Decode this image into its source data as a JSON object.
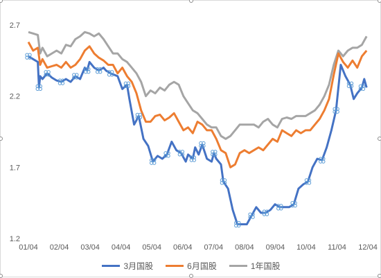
{
  "chart_data": {
    "type": "line",
    "x_ticks": [
      "01/04",
      "02/04",
      "03/04",
      "04/04",
      "05/04",
      "06/04",
      "07/04",
      "08/04",
      "09/04",
      "10/04",
      "11/04",
      "12/04"
    ],
    "y_ticks": [
      "1.2",
      "1.7",
      "2.2",
      "2.7"
    ],
    "ylim": [
      1.2,
      2.7
    ],
    "legend_position": "bottom",
    "grid": false,
    "series": [
      {
        "name": "3月国股",
        "color": "#4472c4",
        "points": [
          [
            0,
            2.48
          ],
          [
            0.2,
            2.46
          ],
          [
            0.4,
            2.44
          ],
          [
            0.45,
            2.26
          ],
          [
            0.5,
            2.34
          ],
          [
            0.6,
            2.32
          ],
          [
            0.8,
            2.36
          ],
          [
            1,
            2.33
          ],
          [
            1.2,
            2.31
          ],
          [
            1.4,
            2.3
          ],
          [
            1.6,
            2.32
          ],
          [
            1.8,
            2.3
          ],
          [
            2,
            2.34
          ],
          [
            2.2,
            2.32
          ],
          [
            2.4,
            2.4
          ],
          [
            2.5,
            2.38
          ],
          [
            2.6,
            2.44
          ],
          [
            2.8,
            2.4
          ],
          [
            3,
            2.38
          ],
          [
            3.2,
            2.4
          ],
          [
            3.3,
            2.38
          ],
          [
            3.5,
            2.36
          ],
          [
            3.8,
            2.34
          ],
          [
            4,
            2.25
          ],
          [
            4.2,
            2.28
          ],
          [
            4.3,
            2.18
          ],
          [
            4.5,
            2.0
          ],
          [
            4.7,
            2.06
          ],
          [
            4.9,
            1.9
          ],
          [
            5.1,
            1.85
          ],
          [
            5.3,
            1.74
          ],
          [
            5.5,
            1.78
          ],
          [
            5.7,
            1.76
          ],
          [
            5.9,
            1.79
          ],
          [
            6.1,
            1.88
          ],
          [
            6.3,
            1.82
          ],
          [
            6.5,
            1.8
          ],
          [
            6.7,
            1.74
          ],
          [
            6.8,
            1.79
          ],
          [
            7,
            1.76
          ],
          [
            7.1,
            1.84
          ],
          [
            7.25,
            1.79
          ],
          [
            7.4,
            1.86
          ],
          [
            7.6,
            1.76
          ],
          [
            7.8,
            1.74
          ],
          [
            7.9,
            1.8
          ],
          [
            8,
            1.76
          ],
          [
            8.2,
            1.72
          ],
          [
            8.3,
            1.6
          ],
          [
            8.5,
            1.55
          ],
          [
            8.7,
            1.4
          ],
          [
            8.9,
            1.3
          ],
          [
            9.1,
            1.3
          ],
          [
            9.3,
            1.3
          ],
          [
            9.5,
            1.36
          ],
          [
            9.7,
            1.42
          ],
          [
            9.9,
            1.38
          ],
          [
            10.1,
            1.38
          ],
          [
            10.3,
            1.4
          ],
          [
            10.5,
            1.44
          ],
          [
            10.7,
            1.42
          ],
          [
            10.9,
            1.42
          ],
          [
            11.1,
            1.42
          ],
          [
            11.3,
            1.44
          ],
          [
            11.5,
            1.55
          ],
          [
            11.7,
            1.58
          ],
          [
            11.9,
            1.6
          ],
          [
            12.1,
            1.7
          ],
          [
            12.3,
            1.76
          ],
          [
            12.5,
            1.75
          ],
          [
            12.7,
            1.84
          ],
          [
            12.9,
            1.96
          ],
          [
            13.1,
            2.1
          ],
          [
            13.3,
            2.42
          ],
          [
            13.5,
            2.34
          ],
          [
            13.7,
            2.28
          ],
          [
            13.85,
            2.18
          ],
          [
            14,
            2.22
          ],
          [
            14.2,
            2.26
          ],
          [
            14.3,
            2.32
          ],
          [
            14.4,
            2.26
          ]
        ]
      },
      {
        "name": "6月国股",
        "color": "#ed7d31",
        "points": [
          [
            0,
            2.58
          ],
          [
            0.2,
            2.52
          ],
          [
            0.4,
            2.54
          ],
          [
            0.5,
            2.42
          ],
          [
            0.6,
            2.46
          ],
          [
            0.8,
            2.4
          ],
          [
            1,
            2.41
          ],
          [
            1.2,
            2.42
          ],
          [
            1.4,
            2.4
          ],
          [
            1.6,
            2.44
          ],
          [
            1.8,
            2.4
          ],
          [
            2,
            2.42
          ],
          [
            2.2,
            2.46
          ],
          [
            2.4,
            2.52
          ],
          [
            2.6,
            2.55
          ],
          [
            2.8,
            2.5
          ],
          [
            3,
            2.47
          ],
          [
            3.2,
            2.45
          ],
          [
            3.4,
            2.42
          ],
          [
            3.6,
            2.42
          ],
          [
            3.8,
            2.36
          ],
          [
            4,
            2.4
          ],
          [
            4.2,
            2.34
          ],
          [
            4.4,
            2.3
          ],
          [
            4.6,
            2.22
          ],
          [
            4.8,
            2.1
          ],
          [
            5,
            2.02
          ],
          [
            5.2,
            2.02
          ],
          [
            5.4,
            2.06
          ],
          [
            5.6,
            2.07
          ],
          [
            5.8,
            2.03
          ],
          [
            6,
            2.05
          ],
          [
            6.2,
            2.08
          ],
          [
            6.4,
            2.02
          ],
          [
            6.6,
            1.96
          ],
          [
            6.8,
            1.98
          ],
          [
            7,
            1.94
          ],
          [
            7.2,
            2.02
          ],
          [
            7.4,
            2.0
          ],
          [
            7.6,
            1.96
          ],
          [
            7.8,
            1.96
          ],
          [
            8,
            1.9
          ],
          [
            8.2,
            1.82
          ],
          [
            8.4,
            1.8
          ],
          [
            8.6,
            1.7
          ],
          [
            8.8,
            1.72
          ],
          [
            9,
            1.8
          ],
          [
            9.2,
            1.82
          ],
          [
            9.4,
            1.8
          ],
          [
            9.6,
            1.82
          ],
          [
            9.8,
            1.84
          ],
          [
            10,
            1.82
          ],
          [
            10.2,
            1.86
          ],
          [
            10.4,
            1.9
          ],
          [
            10.6,
            1.88
          ],
          [
            10.8,
            1.96
          ],
          [
            11,
            1.94
          ],
          [
            11.2,
            1.92
          ],
          [
            11.4,
            1.96
          ],
          [
            11.6,
            1.94
          ],
          [
            11.8,
            1.96
          ],
          [
            12,
            1.96
          ],
          [
            12.2,
            2.0
          ],
          [
            12.4,
            2.04
          ],
          [
            12.6,
            2.1
          ],
          [
            12.8,
            2.18
          ],
          [
            13,
            2.35
          ],
          [
            13.2,
            2.5
          ],
          [
            13.4,
            2.44
          ],
          [
            13.6,
            2.4
          ],
          [
            13.8,
            2.45
          ],
          [
            14,
            2.4
          ],
          [
            14.2,
            2.48
          ],
          [
            14.4,
            2.52
          ]
        ]
      },
      {
        "name": "1年国股",
        "color": "#a5a5a5",
        "points": [
          [
            0,
            2.65
          ],
          [
            0.2,
            2.64
          ],
          [
            0.4,
            2.63
          ],
          [
            0.5,
            2.5
          ],
          [
            0.6,
            2.54
          ],
          [
            0.8,
            2.48
          ],
          [
            1,
            2.5
          ],
          [
            1.2,
            2.52
          ],
          [
            1.4,
            2.5
          ],
          [
            1.6,
            2.56
          ],
          [
            1.8,
            2.55
          ],
          [
            2,
            2.6
          ],
          [
            2.2,
            2.62
          ],
          [
            2.4,
            2.65
          ],
          [
            2.6,
            2.64
          ],
          [
            2.8,
            2.62
          ],
          [
            3,
            2.64
          ],
          [
            3.2,
            2.6
          ],
          [
            3.4,
            2.55
          ],
          [
            3.6,
            2.5
          ],
          [
            3.8,
            2.5
          ],
          [
            4,
            2.46
          ],
          [
            4.2,
            2.44
          ],
          [
            4.4,
            2.4
          ],
          [
            4.6,
            2.36
          ],
          [
            4.8,
            2.3
          ],
          [
            5,
            2.2
          ],
          [
            5.2,
            2.24
          ],
          [
            5.4,
            2.22
          ],
          [
            5.6,
            2.26
          ],
          [
            5.8,
            2.24
          ],
          [
            6,
            2.28
          ],
          [
            6.2,
            2.3
          ],
          [
            6.4,
            2.28
          ],
          [
            6.6,
            2.2
          ],
          [
            6.8,
            2.15
          ],
          [
            7,
            2.1
          ],
          [
            7.2,
            2.08
          ],
          [
            7.4,
            2.04
          ],
          [
            7.6,
            2.0
          ],
          [
            7.8,
            1.98
          ],
          [
            8,
            1.98
          ],
          [
            8.2,
            1.92
          ],
          [
            8.4,
            1.9
          ],
          [
            8.6,
            1.92
          ],
          [
            8.8,
            1.96
          ],
          [
            9,
            2.0
          ],
          [
            9.2,
            2.0
          ],
          [
            9.4,
            2.0
          ],
          [
            9.6,
            2.0
          ],
          [
            9.8,
            1.98
          ],
          [
            10,
            2.02
          ],
          [
            10.2,
            2.04
          ],
          [
            10.4,
            2.0
          ],
          [
            10.6,
            1.98
          ],
          [
            10.8,
            2.04
          ],
          [
            11,
            2.05
          ],
          [
            11.2,
            2.04
          ],
          [
            11.4,
            2.06
          ],
          [
            11.6,
            2.06
          ],
          [
            11.8,
            2.06
          ],
          [
            12,
            2.08
          ],
          [
            12.2,
            2.1
          ],
          [
            12.4,
            2.14
          ],
          [
            12.6,
            2.2
          ],
          [
            12.8,
            2.28
          ],
          [
            13,
            2.42
          ],
          [
            13.2,
            2.52
          ],
          [
            13.4,
            2.48
          ],
          [
            13.6,
            2.52
          ],
          [
            13.8,
            2.54
          ],
          [
            14,
            2.54
          ],
          [
            14.2,
            2.56
          ],
          [
            14.4,
            2.62
          ]
        ]
      }
    ]
  },
  "legend": {
    "items": [
      "3月国股",
      "6月国股",
      "1年国股"
    ]
  }
}
